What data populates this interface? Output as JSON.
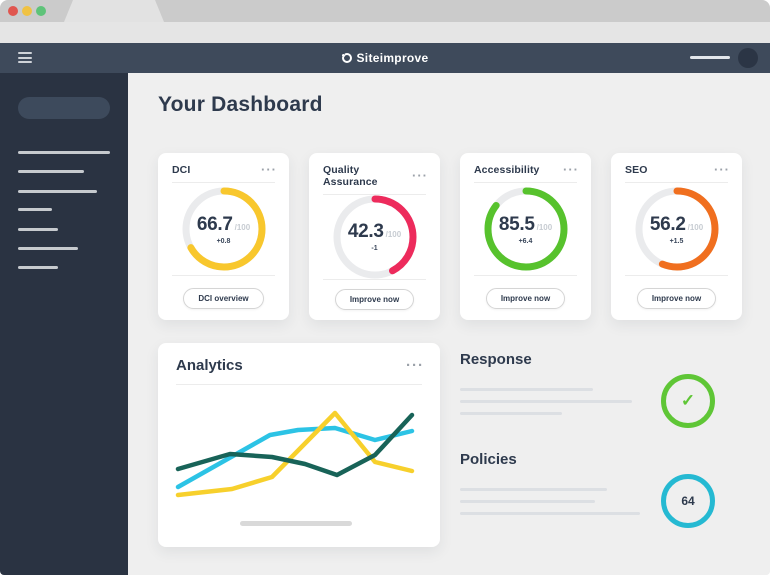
{
  "window": {
    "traffic_lights": {
      "close": "#e0564f",
      "minimize": "#f0c243",
      "zoom": "#5ec379"
    }
  },
  "navbar": {
    "brand": "Siteimprove"
  },
  "icons": {
    "more": "···",
    "check": "✓"
  },
  "page": {
    "title": "Your Dashboard"
  },
  "score_cards": [
    {
      "title": "DCI",
      "score": "66.7",
      "max": "/100",
      "delta": "+0.8",
      "pct": 66.7,
      "color": "#f8c72d",
      "button": "DCI overview"
    },
    {
      "title": "Quality Assurance",
      "score": "42.3",
      "max": "/100",
      "delta": "-1",
      "pct": 42.3,
      "color": "#ed2b5c",
      "button": "Improve now"
    },
    {
      "title": "Accessibility",
      "score": "85.5",
      "max": "/100",
      "delta": "+6.4",
      "pct": 85.5,
      "color": "#57c22d",
      "button": "Improve now"
    },
    {
      "title": "SEO",
      "score": "56.2",
      "max": "/100",
      "delta": "+1.5",
      "pct": 56.2,
      "color": "#f06f1f",
      "button": "Improve now"
    }
  ],
  "analytics": {
    "title": "Analytics"
  },
  "chart_data": {
    "type": "line",
    "title": "Analytics",
    "axes": "none",
    "legend": "none",
    "units": "px (260x120 viewBox, y down)",
    "series": [
      {
        "name": "cyan-trend",
        "color": "#2cc3e5",
        "points": [
          [
            8,
            89
          ],
          [
            100,
            37
          ],
          [
            128,
            32
          ],
          [
            165,
            30
          ],
          [
            205,
            42
          ],
          [
            242,
            33
          ]
        ]
      },
      {
        "name": "yellow-trend",
        "color": "#f7d02c",
        "points": [
          [
            8,
            97
          ],
          [
            62,
            91
          ],
          [
            102,
            79
          ],
          [
            165,
            15
          ],
          [
            205,
            64
          ],
          [
            242,
            73
          ]
        ]
      },
      {
        "name": "teal-trend",
        "color": "#186358",
        "points": [
          [
            8,
            71
          ],
          [
            60,
            56
          ],
          [
            102,
            59
          ],
          [
            135,
            66
          ],
          [
            167,
            77
          ],
          [
            205,
            57
          ],
          [
            242,
            17
          ]
        ]
      }
    ]
  },
  "response": {
    "title": "Response",
    "status": "passed",
    "accent": "#5fc636"
  },
  "policies": {
    "title": "Policies",
    "count": "64",
    "accent": "#25b9d2"
  }
}
